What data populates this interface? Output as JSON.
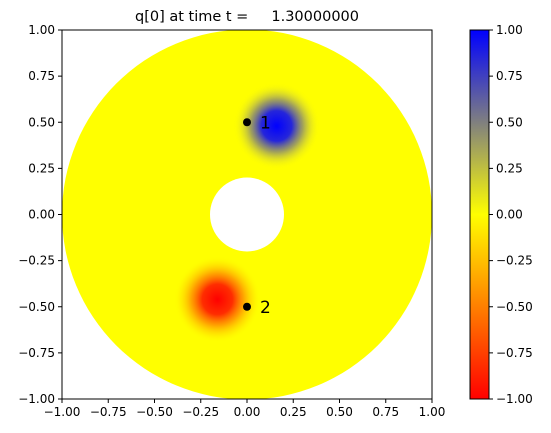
{
  "chart_data": {
    "type": "heatmap",
    "title": "q[0] at time t =     1.30000000",
    "xlabel": "",
    "ylabel": "",
    "xlim": [
      -1.0,
      1.0
    ],
    "ylim": [
      -1.0,
      1.0
    ],
    "xticks": [
      "−1.00",
      "−0.75",
      "−0.50",
      "−0.25",
      "0.00",
      "0.25",
      "0.50",
      "0.75",
      "1.00"
    ],
    "yticks": [
      "1.00",
      "0.75",
      "0.50",
      "0.25",
      "0.00",
      "−0.25",
      "−0.50",
      "−0.75",
      "−1.00"
    ],
    "domain": {
      "shape": "annulus",
      "outer_radius": 1.0,
      "inner_radius": 0.2
    },
    "field_blobs": [
      {
        "center": [
          0.16,
          0.48
        ],
        "amplitude": 1.0,
        "width": 0.09
      },
      {
        "center": [
          -0.16,
          -0.46
        ],
        "amplitude": -1.0,
        "width": 0.09
      }
    ],
    "gauges": [
      {
        "label": "1",
        "x": 0.0,
        "y": 0.5
      },
      {
        "label": "2",
        "x": 0.0,
        "y": -0.5
      }
    ],
    "colorbar": {
      "min": -1.0,
      "max": 1.0,
      "ticks": [
        "1.00",
        "0.75",
        "0.50",
        "0.25",
        "0.00",
        "−0.25",
        "−0.50",
        "−0.75",
        "−1.00"
      ],
      "colormap": [
        "#ff0000",
        "#ffff00",
        "#0000ff"
      ]
    },
    "grid": false
  }
}
